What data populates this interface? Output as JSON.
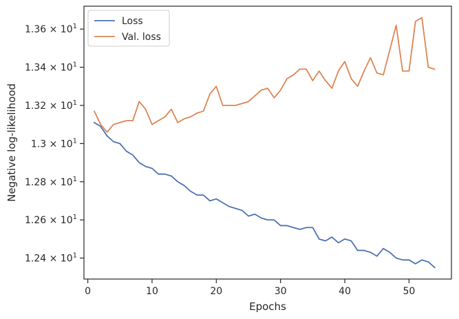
{
  "chart_data": {
    "type": "line",
    "xlabel": "Epochs",
    "ylabel": "Negative log-likelihood",
    "xlim": [
      -0.6,
      56.6
    ],
    "ylim": [
      12.29,
      13.72
    ],
    "x_ticks": [
      0,
      10,
      20,
      30,
      40,
      50
    ],
    "x_tick_labels": [
      "0",
      "10",
      "20",
      "30",
      "40",
      "50"
    ],
    "y_ticks": [
      12.4,
      12.6,
      12.8,
      13.0,
      13.2,
      13.4,
      13.6
    ],
    "y_tick_labels": [
      {
        "base": "1.24",
        "exp": "1"
      },
      {
        "base": "1.26",
        "exp": "1"
      },
      {
        "base": "1.28",
        "exp": "1"
      },
      {
        "base": "1.3",
        "exp": "1"
      },
      {
        "base": "1.32",
        "exp": "1"
      },
      {
        "base": "1.34",
        "exp": "1"
      },
      {
        "base": "1.36",
        "exp": "1"
      }
    ],
    "tick_times": "× 10",
    "legend_position": "top-left",
    "grid": false,
    "x": [
      1,
      2,
      3,
      4,
      5,
      6,
      7,
      8,
      9,
      10,
      11,
      12,
      13,
      14,
      15,
      16,
      17,
      18,
      19,
      20,
      21,
      22,
      23,
      24,
      25,
      26,
      27,
      28,
      29,
      30,
      31,
      32,
      33,
      34,
      35,
      36,
      37,
      38,
      39,
      40,
      41,
      42,
      43,
      44,
      45,
      46,
      47,
      48,
      49,
      50,
      51,
      52,
      53,
      54
    ],
    "series": [
      {
        "name": "Loss",
        "color": "#4c72b0",
        "values": [
          13.11,
          13.09,
          13.04,
          13.01,
          13.0,
          12.96,
          12.94,
          12.9,
          12.88,
          12.87,
          12.84,
          12.84,
          12.83,
          12.8,
          12.78,
          12.75,
          12.73,
          12.73,
          12.7,
          12.71,
          12.69,
          12.67,
          12.66,
          12.65,
          12.62,
          12.63,
          12.61,
          12.6,
          12.6,
          12.57,
          12.57,
          12.56,
          12.55,
          12.56,
          12.56,
          12.5,
          12.49,
          12.51,
          12.48,
          12.5,
          12.49,
          12.44,
          12.44,
          12.43,
          12.41,
          12.45,
          12.43,
          12.4,
          12.39,
          12.39,
          12.37,
          12.39,
          12.38,
          12.35
        ]
      },
      {
        "name": "Val. loss",
        "color": "#dd8452",
        "values": [
          13.17,
          13.1,
          13.06,
          13.1,
          13.11,
          13.12,
          13.12,
          13.22,
          13.18,
          13.1,
          13.12,
          13.14,
          13.18,
          13.11,
          13.13,
          13.14,
          13.16,
          13.17,
          13.26,
          13.3,
          13.2,
          13.2,
          13.2,
          13.21,
          13.22,
          13.25,
          13.28,
          13.29,
          13.24,
          13.28,
          13.34,
          13.36,
          13.39,
          13.39,
          13.33,
          13.38,
          13.33,
          13.29,
          13.38,
          13.43,
          13.34,
          13.3,
          13.38,
          13.45,
          13.37,
          13.36,
          13.49,
          13.62,
          13.38,
          13.38,
          13.64,
          13.66,
          13.4,
          13.39
        ]
      }
    ]
  }
}
